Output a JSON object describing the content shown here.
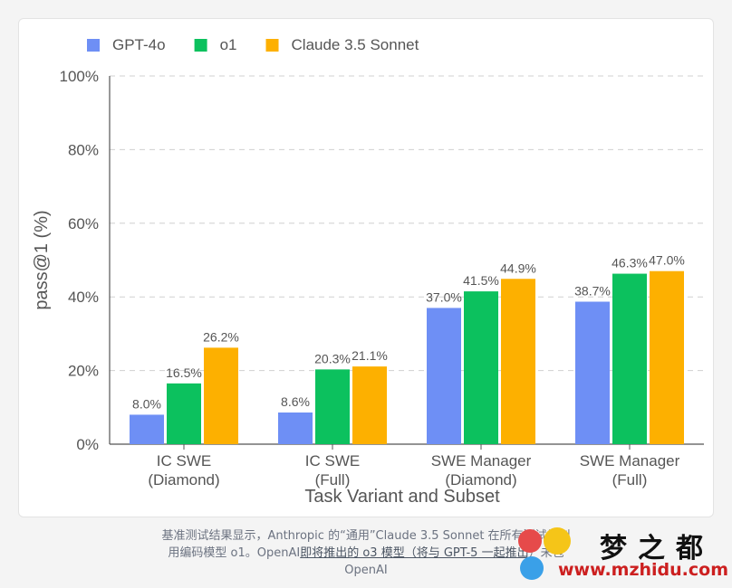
{
  "chart_data": {
    "type": "bar",
    "xlabel": "Task Variant and Subset",
    "ylabel": "pass@1 (%)",
    "ylim": [
      0,
      100
    ],
    "yticks": [
      0,
      20,
      40,
      60,
      80,
      100
    ],
    "ytick_labels": [
      "0%",
      "20%",
      "40%",
      "60%",
      "80%",
      "100%"
    ],
    "grid": true,
    "legend_position": "top-left",
    "categories": [
      [
        "IC SWE",
        "(Diamond)"
      ],
      [
        "IC SWE",
        "(Full)"
      ],
      [
        "SWE Manager",
        "(Diamond)"
      ],
      [
        "SWE Manager",
        "(Full)"
      ]
    ],
    "series": [
      {
        "name": "GPT-4o",
        "color": "#6e8ff5",
        "values": [
          8.0,
          8.6,
          37.0,
          38.7
        ],
        "labels": [
          "8.0%",
          "8.6%",
          "37.0%",
          "38.7%"
        ]
      },
      {
        "name": "o1",
        "color": "#0cc15e",
        "values": [
          16.5,
          20.3,
          41.5,
          46.3
        ],
        "labels": [
          "16.5%",
          "20.3%",
          "41.5%",
          "46.3%"
        ]
      },
      {
        "name": "Claude 3.5 Sonnet",
        "color": "#fdb000",
        "values": [
          26.2,
          21.1,
          44.9,
          47.0
        ],
        "labels": [
          "26.2%",
          "21.1%",
          "44.9%",
          "47.0%"
        ]
      }
    ]
  },
  "caption": {
    "line1": "基准测试结果显示，Anthropic 的“通用”Claude 3.5 Sonnet 在所有测试类别",
    "line2_prefix": "用编码模型 o1。OpenAI",
    "line2_link": "即将推出的 o3 模型（将与 GPT-5 一起推出",
    "line2_suffix": "）未包",
    "line3": "OpenAI"
  },
  "watermark": {
    "name": "梦之都",
    "url": "www.mzhidu.com"
  }
}
